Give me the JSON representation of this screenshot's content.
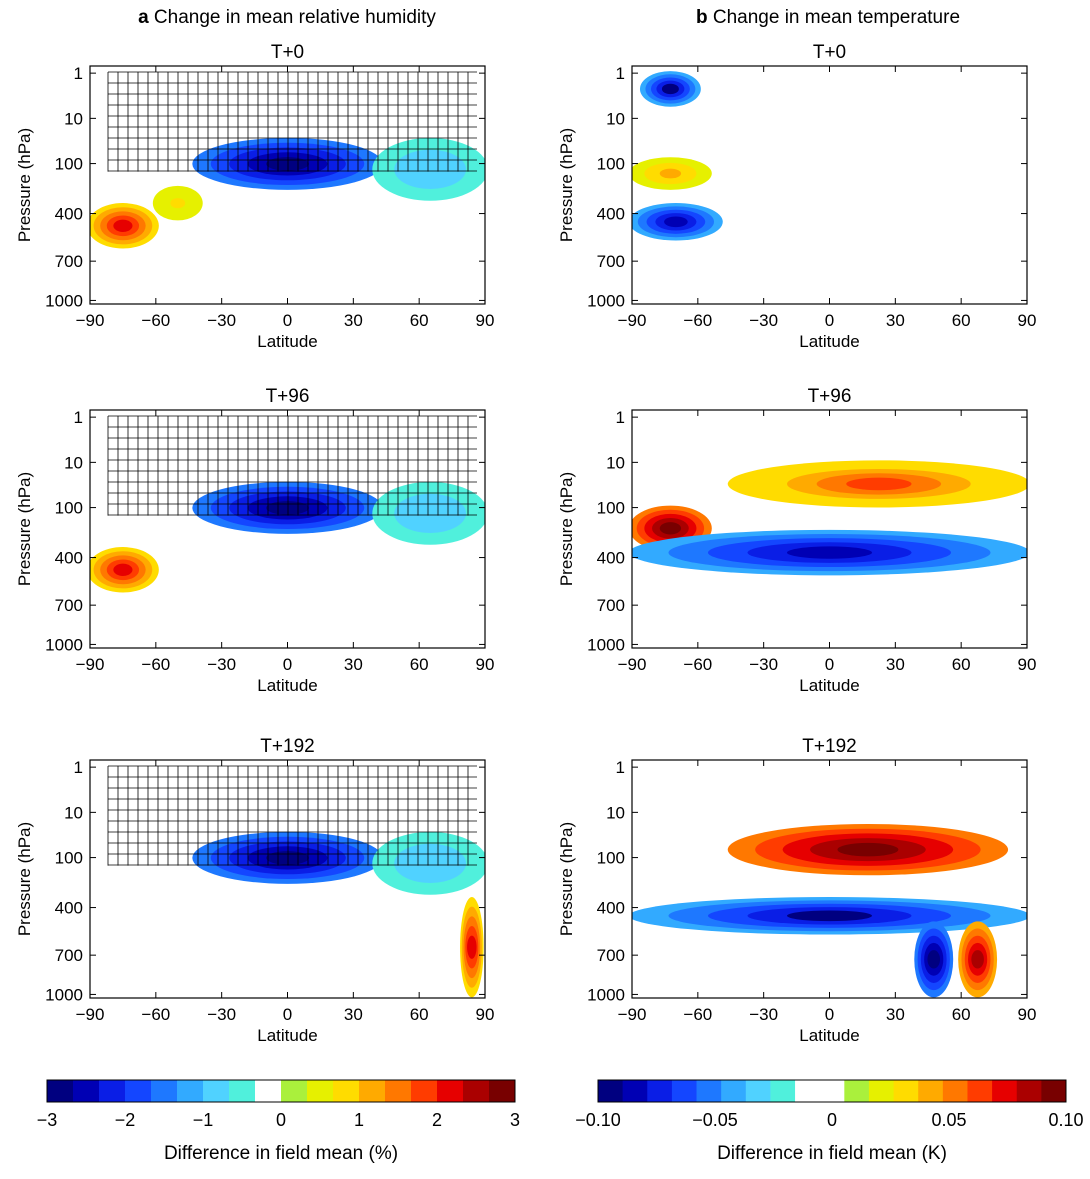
{
  "column_headers": [
    {
      "letter": "a",
      "title": "Change in mean relative humidity"
    },
    {
      "letter": "b",
      "title": "Change in mean temperature"
    }
  ],
  "chart_data": [
    {
      "type": "heatmap",
      "column": "a",
      "title": "T+0",
      "xlabel": "Latitude",
      "ylabel": "Pressure (hPa)",
      "x_ticks": [
        "−90",
        "−60",
        "−30",
        "0",
        "30",
        "60",
        "90"
      ],
      "y_ticks": [
        "1",
        "10",
        "100",
        "400",
        "700",
        "1000"
      ],
      "xlim": [
        -90,
        90
      ],
      "ylim": [
        1000,
        1
      ],
      "y_scale": "log-like pressure",
      "features": [
        {
          "lat": [
            -42,
            42
          ],
          "p": [
            30,
            150
          ],
          "value": -3
        },
        {
          "lat": [
            40,
            90
          ],
          "p": [
            30,
            180
          ],
          "value": -1
        },
        {
          "lat": [
            -90,
            -60
          ],
          "p": [
            200,
            400
          ],
          "value": 2
        },
        {
          "lat": [
            -60,
            -40
          ],
          "p": [
            150,
            250
          ],
          "value": 0.7
        }
      ]
    },
    {
      "type": "heatmap",
      "column": "a",
      "title": "T+96",
      "xlabel": "Latitude",
      "ylabel": "Pressure (hPa)",
      "x_ticks": [
        "−90",
        "−60",
        "−30",
        "0",
        "30",
        "60",
        "90"
      ],
      "y_ticks": [
        "1",
        "10",
        "100",
        "400",
        "700",
        "1000"
      ],
      "xlim": [
        -90,
        90
      ],
      "ylim": [
        1000,
        1
      ],
      "y_scale": "log-like pressure",
      "features": [
        {
          "lat": [
            -42,
            42
          ],
          "p": [
            30,
            150
          ],
          "value": -3
        },
        {
          "lat": [
            40,
            90
          ],
          "p": [
            30,
            180
          ],
          "value": -1
        },
        {
          "lat": [
            -90,
            -60
          ],
          "p": [
            200,
            400
          ],
          "value": 2
        }
      ]
    },
    {
      "type": "heatmap",
      "column": "a",
      "title": "T+192",
      "xlabel": "Latitude",
      "ylabel": "Pressure (hPa)",
      "x_ticks": [
        "−90",
        "−60",
        "−30",
        "0",
        "30",
        "60",
        "90"
      ],
      "y_ticks": [
        "1",
        "10",
        "100",
        "400",
        "700",
        "1000"
      ],
      "xlim": [
        -90,
        90
      ],
      "ylim": [
        1000,
        1
      ],
      "y_scale": "log-like pressure",
      "features": [
        {
          "lat": [
            -42,
            42
          ],
          "p": [
            30,
            150
          ],
          "value": -3
        },
        {
          "lat": [
            40,
            90
          ],
          "p": [
            30,
            180
          ],
          "value": -1
        },
        {
          "lat": [
            80,
            88
          ],
          "p": [
            200,
            1000
          ],
          "value": 2
        }
      ]
    },
    {
      "type": "heatmap",
      "column": "b",
      "title": "T+0",
      "xlabel": "Latitude",
      "ylabel": "Pressure (hPa)",
      "x_ticks": [
        "−90",
        "−60",
        "−30",
        "0",
        "30",
        "60",
        "90"
      ],
      "y_ticks": [
        "1",
        "10",
        "100",
        "400",
        "700",
        "1000"
      ],
      "xlim": [
        -90,
        90
      ],
      "ylim": [
        1000,
        1
      ],
      "y_scale": "log-like pressure",
      "features": [
        {
          "lat": [
            -85,
            -60
          ],
          "p": [
            1,
            5
          ],
          "value": -0.09
        },
        {
          "lat": [
            -90,
            -55
          ],
          "p": [
            80,
            150
          ],
          "value": 0.04
        },
        {
          "lat": [
            -90,
            -50
          ],
          "p": [
            200,
            350
          ],
          "value": -0.08
        }
      ]
    },
    {
      "type": "heatmap",
      "column": "b",
      "title": "T+96",
      "xlabel": "Latitude",
      "ylabel": "Pressure (hPa)",
      "x_ticks": [
        "−90",
        "−60",
        "−30",
        "0",
        "30",
        "60",
        "90"
      ],
      "y_ticks": [
        "1",
        "10",
        "100",
        "400",
        "700",
        "1000"
      ],
      "xlim": [
        -90,
        90
      ],
      "ylim": [
        1000,
        1
      ],
      "y_scale": "log-like pressure",
      "features": [
        {
          "lat": [
            -45,
            90
          ],
          "p": [
            10,
            90
          ],
          "value": 0.06
        },
        {
          "lat": [
            -90,
            -55
          ],
          "p": [
            100,
            200
          ],
          "value": 0.1
        },
        {
          "lat": [
            -90,
            90
          ],
          "p": [
            150,
            300
          ],
          "value": -0.08
        }
      ]
    },
    {
      "type": "heatmap",
      "column": "b",
      "title": "T+192",
      "xlabel": "Latitude",
      "ylabel": "Pressure (hPa)",
      "x_ticks": [
        "−90",
        "−60",
        "−30",
        "0",
        "30",
        "60",
        "90"
      ],
      "y_ticks": [
        "1",
        "10",
        "100",
        "400",
        "700",
        "1000"
      ],
      "xlim": [
        -90,
        90
      ],
      "ylim": [
        1000,
        1
      ],
      "y_scale": "log-like pressure",
      "features": [
        {
          "lat": [
            -45,
            80
          ],
          "p": [
            20,
            130
          ],
          "value": 0.1
        },
        {
          "lat": [
            -90,
            90
          ],
          "p": [
            200,
            350
          ],
          "value": -0.09
        },
        {
          "lat": [
            40,
            55
          ],
          "p": [
            300,
            1000
          ],
          "value": -0.1
        },
        {
          "lat": [
            60,
            75
          ],
          "p": [
            300,
            1000
          ],
          "value": 0.08
        }
      ]
    }
  ],
  "colorbars": [
    {
      "column": "a",
      "ticks": [
        "−3",
        "−2",
        "−1",
        "0",
        "1",
        "2",
        "3"
      ],
      "label": "Difference in field mean (%)",
      "colors": [
        "#000080",
        "#0000b4",
        "#0a1ee6",
        "#1446ff",
        "#1e78ff",
        "#32aaff",
        "#50d2ff",
        "#50f0dc",
        "#ffffff",
        "#aaf03c",
        "#e6f000",
        "#ffdc00",
        "#ffaa00",
        "#ff7800",
        "#ff3c00",
        "#e60000",
        "#aa0000",
        "#780000"
      ]
    },
    {
      "column": "b",
      "ticks": [
        "−0.10",
        "−0.05",
        "0",
        "0.05",
        "0.10"
      ],
      "label": "Difference in field mean (K)",
      "colors": [
        "#000080",
        "#0000b4",
        "#0a1ee6",
        "#1446ff",
        "#1e78ff",
        "#32aaff",
        "#50d2ff",
        "#50f0dc",
        "#ffffff",
        "#ffffff",
        "#aaf03c",
        "#e6f000",
        "#ffdc00",
        "#ffaa00",
        "#ff7800",
        "#ff3c00",
        "#e60000",
        "#aa0000",
        "#780000"
      ]
    }
  ]
}
